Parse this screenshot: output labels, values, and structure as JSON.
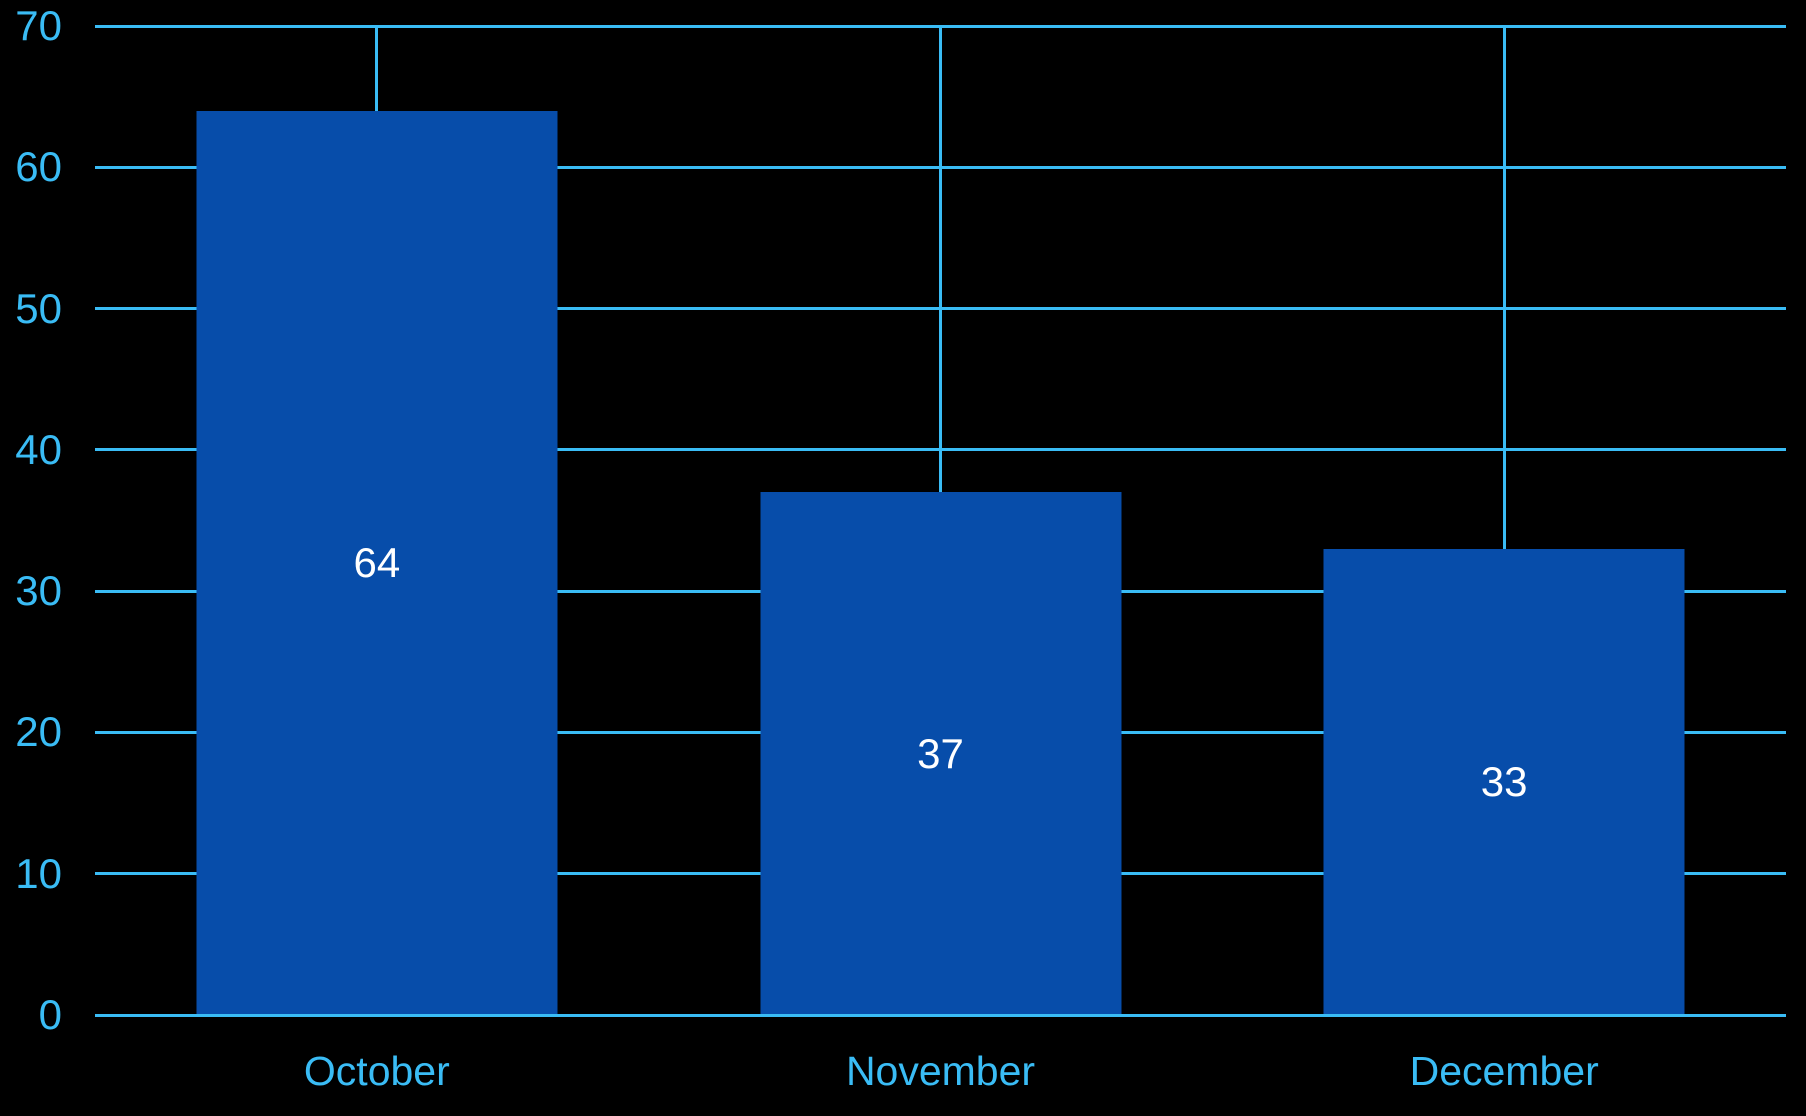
{
  "chart_data": {
    "type": "bar",
    "title": "",
    "xlabel": "",
    "ylabel": "",
    "categories": [
      "October",
      "November",
      "December"
    ],
    "values": [
      64,
      37,
      33
    ],
    "value_labels": [
      "64",
      "37",
      "33"
    ],
    "ylim": [
      0,
      70
    ],
    "yticks": [
      0,
      10,
      20,
      30,
      40,
      50,
      60,
      70
    ],
    "grid": true,
    "legend": false,
    "legend_position": "none",
    "colors": {
      "background": "#000000",
      "bar": "#074DAA",
      "grid": "#3ABCF5",
      "tick_label": "#3ABCF5",
      "value_label": "#FFFFFF"
    }
  }
}
